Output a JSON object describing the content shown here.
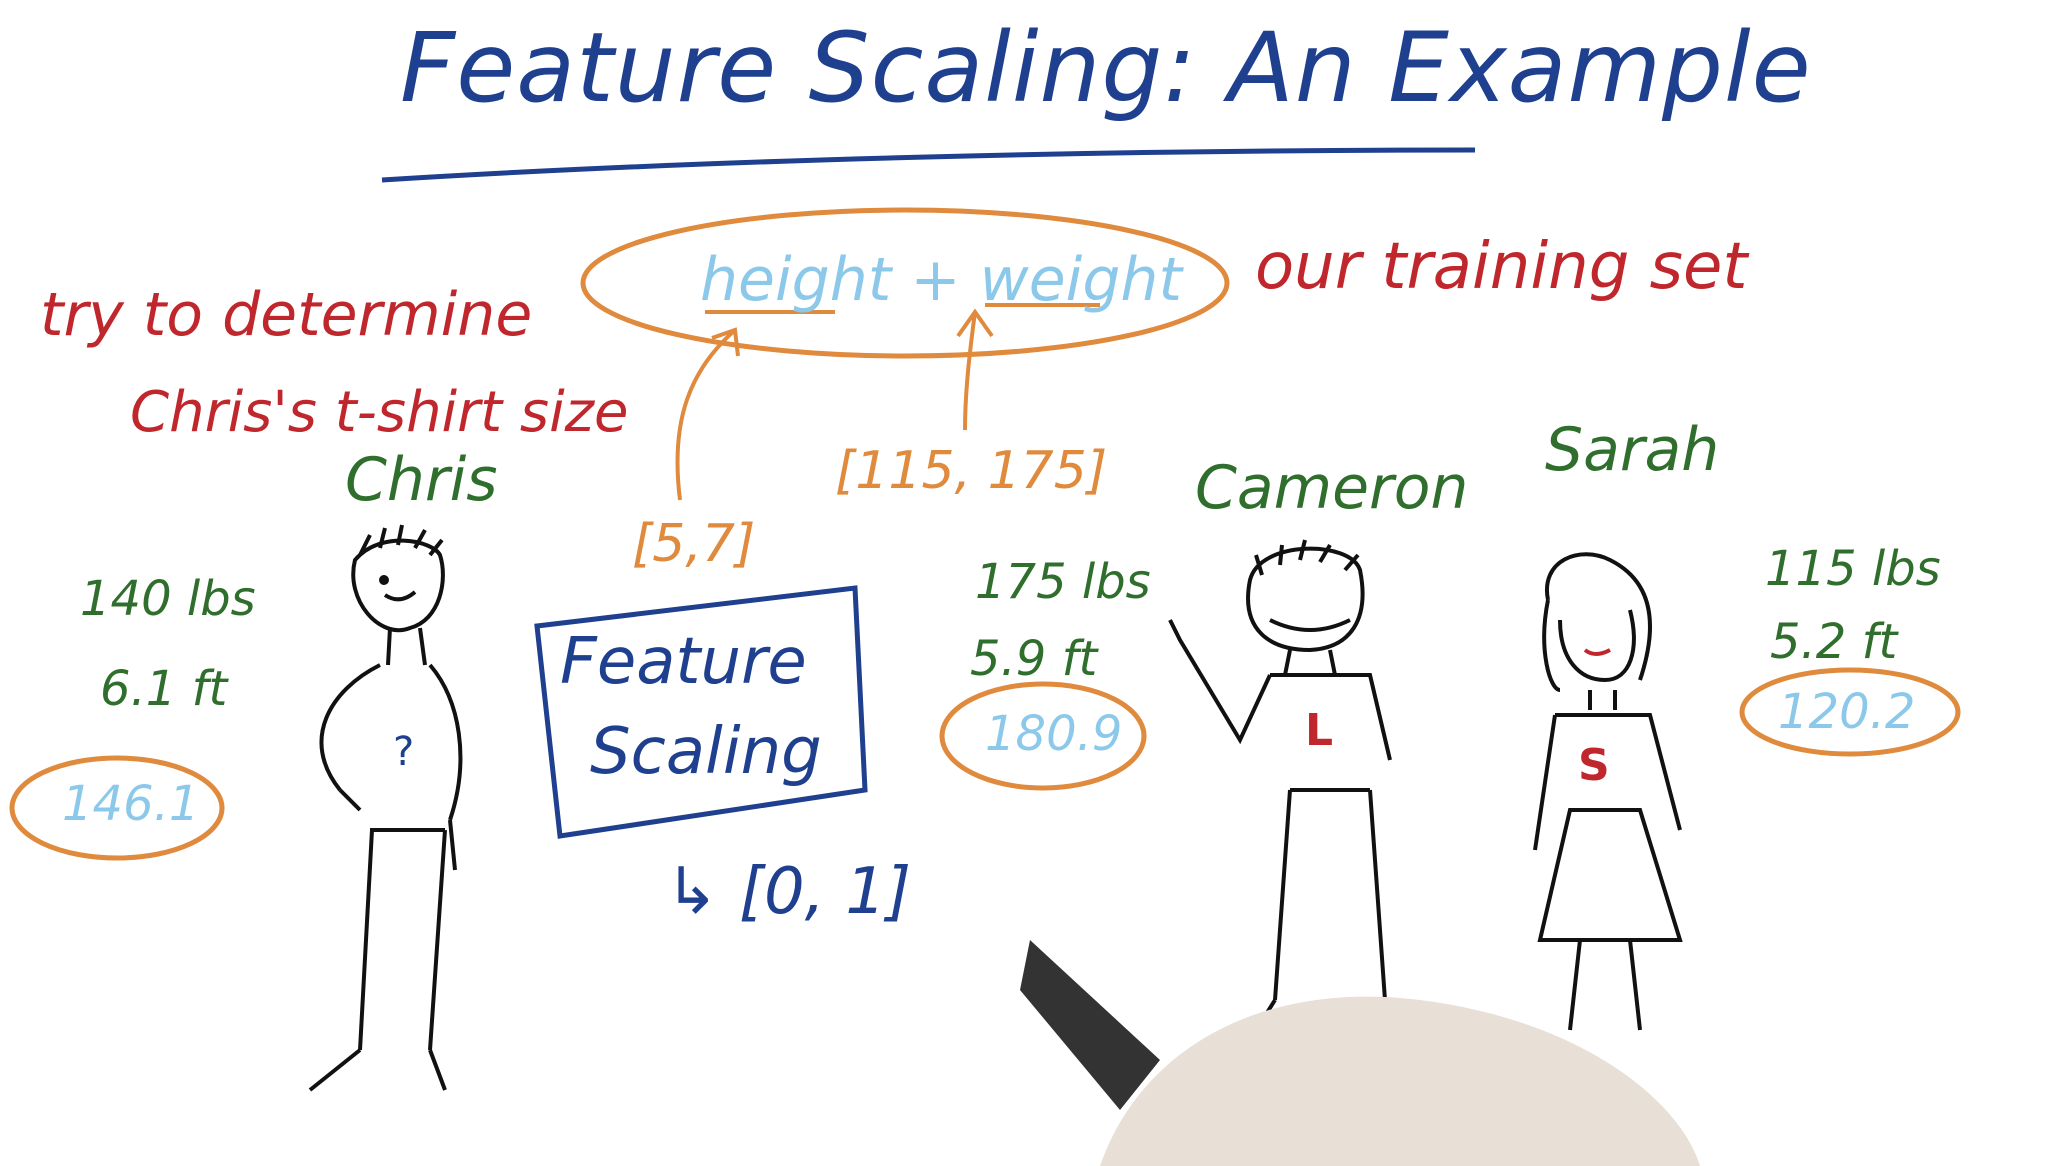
{
  "colors": {
    "blue": "#1f3f8f",
    "red": "#c0272d",
    "green": "#2f6e2c",
    "orange": "#df8a3c",
    "lightblue": "#8cc8ea",
    "ink": "#111111"
  },
  "title": "Feature Scaling: An Example",
  "left_note": {
    "line1": "try to determine",
    "line2": "Chris's t-shirt size"
  },
  "training_set": {
    "features": "height + weight",
    "label": "our training set"
  },
  "ranges": {
    "height": "[5,7]",
    "weight": "[115, 175]"
  },
  "feature_scaling": {
    "line1": "Feature",
    "line2": "Scaling",
    "output": "↳ [0, 1]"
  },
  "people": [
    {
      "name": "Chris",
      "weight": "140 lbs",
      "height": "6.1 ft",
      "sum": "146.1",
      "shirt": "?"
    },
    {
      "name": "Cameron",
      "weight": "175 lbs",
      "height": "5.9 ft",
      "sum": "180.9",
      "shirt": "L"
    },
    {
      "name": "Sarah",
      "weight": "115 lbs",
      "height": "5.2 ft",
      "sum": "120.2",
      "shirt": "S"
    }
  ]
}
